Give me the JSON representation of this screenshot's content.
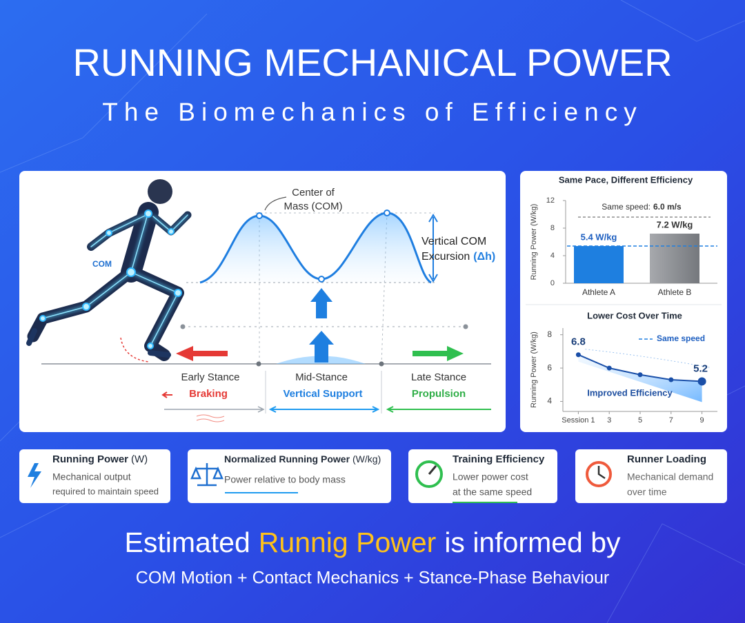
{
  "header": {
    "title": "RUNNING MECHANICAL POWER",
    "subtitle": "The Biomechanics of Efficiency"
  },
  "diagram": {
    "com_marker": "COM",
    "com_label": [
      "Center of",
      "Mass (COM)"
    ],
    "excursion_label": [
      "Vertical COM",
      "Excursion"
    ],
    "excursion_symbol": "(Δh)",
    "phases": [
      {
        "name": "Early Stance",
        "role": "Braking"
      },
      {
        "name": "Mid-Stance",
        "role": "Vertical Support"
      },
      {
        "name": "Late Stance",
        "role": "Propulsion"
      }
    ]
  },
  "chart_data": [
    {
      "type": "bar",
      "title": "Same Pace, Different Efficiency",
      "y_label": "Running Power (W/kg)",
      "categories": [
        "Athlete A",
        "Athlete B"
      ],
      "values": [
        5.4,
        7.2
      ],
      "value_labels": [
        "5.4 W/kg",
        "7.2 W/kg"
      ],
      "colors": [
        "#1e7fe0",
        "#8e9196"
      ],
      "ylim": [
        0,
        12
      ],
      "yticks": [
        0,
        4,
        8,
        12
      ],
      "annotation": {
        "label": "Same speed:",
        "value": "6.0 m/s"
      }
    },
    {
      "type": "line",
      "title": "Lower Cost Over Time",
      "y_label": "Running Power (W/kg)",
      "x": [
        1,
        3,
        5,
        7,
        9
      ],
      "values": [
        6.8,
        6.0,
        5.6,
        5.3,
        5.2
      ],
      "color": "#1a4fa8",
      "xlim": [
        0,
        10
      ],
      "xticks": [
        {
          "value": 1,
          "label": "Session 1"
        },
        3,
        5,
        7,
        9
      ],
      "ylim": [
        3.4,
        8.4
      ],
      "yticks": [
        4,
        6,
        8
      ],
      "legend": "Same speed",
      "annotation": "Improved Efficiency"
    }
  ],
  "cards": [
    {
      "title": "Running Power",
      "unit": "(W)",
      "description": [
        "Mechanical output",
        "required to maintain speed"
      ]
    },
    {
      "title": "Normalized Running Power",
      "unit": "(W/kg)",
      "description": [
        "Power relative to body mass"
      ]
    },
    {
      "title": "Training Efficiency",
      "description": [
        "Lower power cost",
        "at the same speed"
      ]
    },
    {
      "title": "Runner Loading",
      "description": [
        "Mechanical demand",
        "over time"
      ]
    }
  ],
  "footer": {
    "lead": "Estimated",
    "highlight": "Runnig Power",
    "tail": "is informed by",
    "subtitle": "COM Motion + Contact Mechanics + Stance-Phase Behaviour"
  }
}
